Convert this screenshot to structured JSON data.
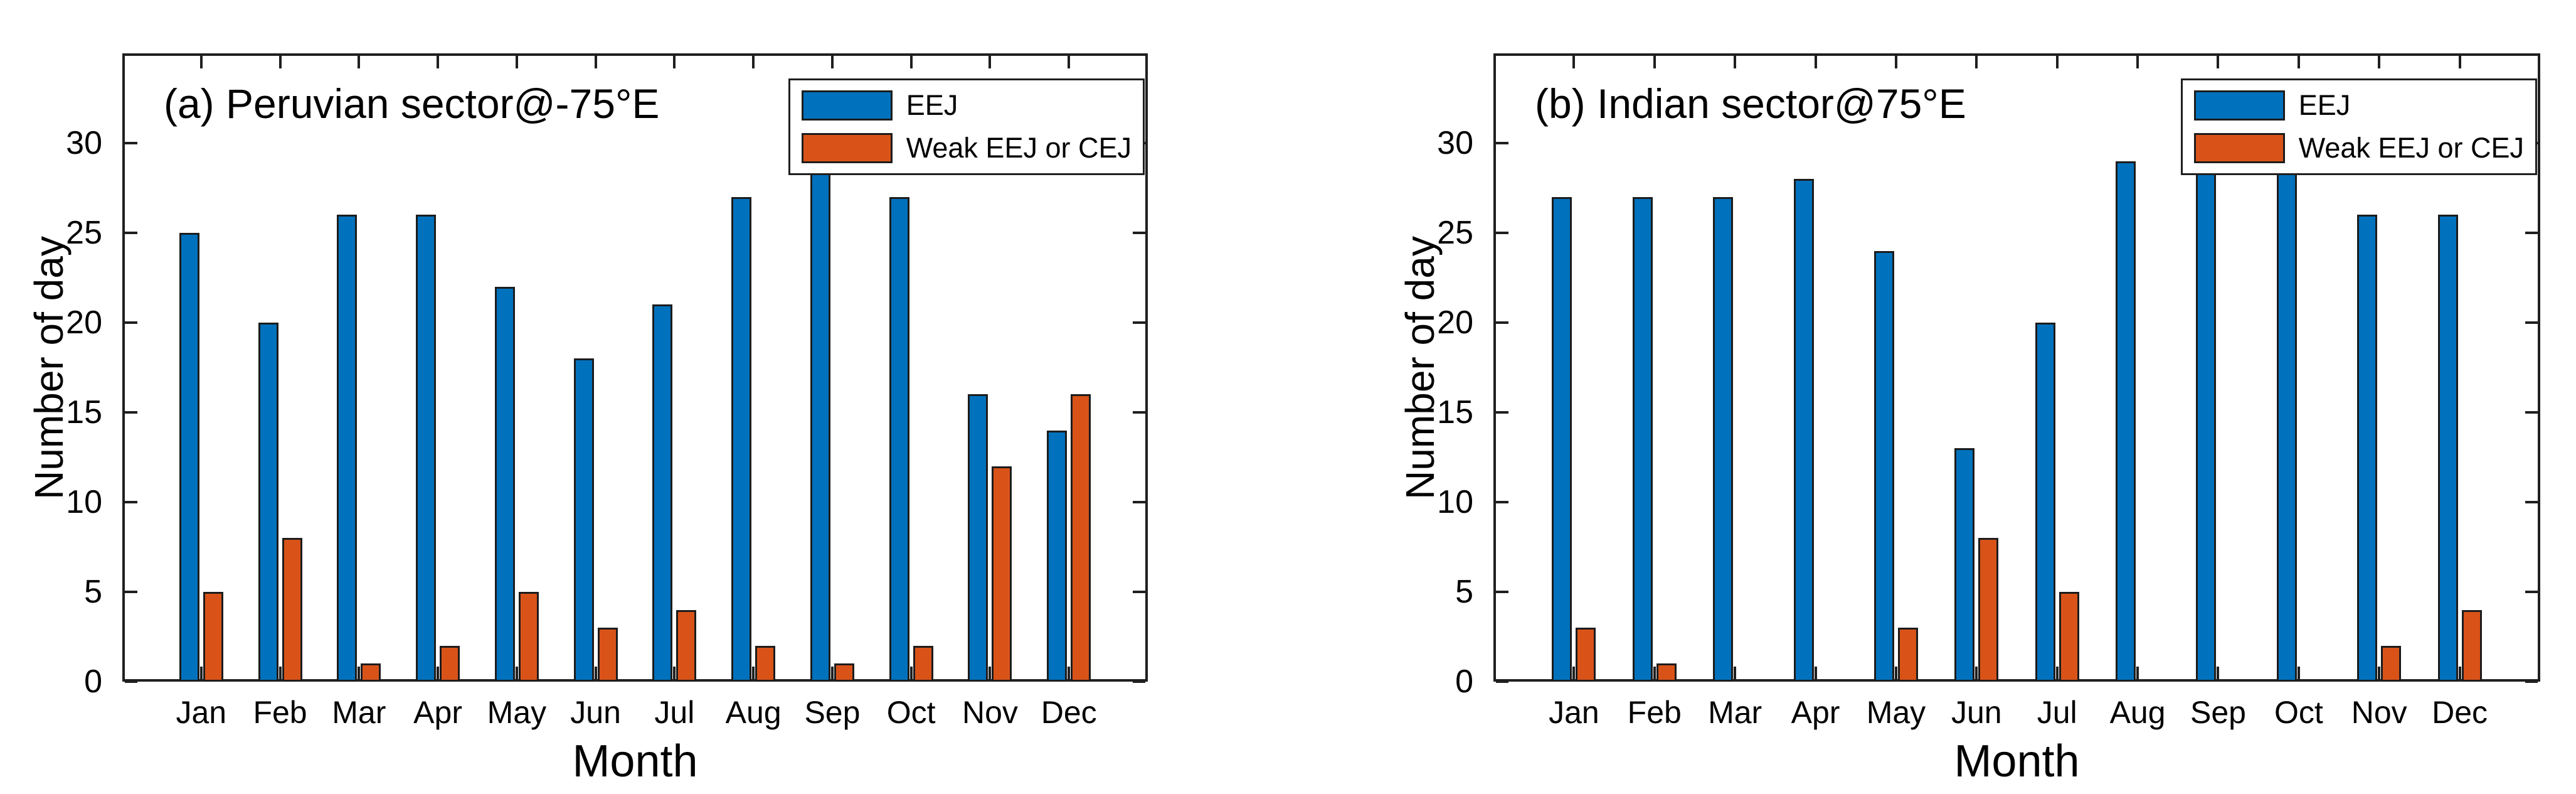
{
  "figure": {
    "background": "#ffffff",
    "axis_color": "#1f1f1f",
    "bar_edge_color": "#1c1c1c",
    "eej_color": "#0072BD",
    "weak_color": "#D95319",
    "legend_entries": [
      "EEJ",
      "Weak EEJ or CEJ"
    ]
  },
  "chart_data": [
    {
      "type": "bar",
      "title": "(a) Peruvian sector@-75°E",
      "xlabel": "Month",
      "ylabel": "Number of day",
      "ylim": [
        0,
        35
      ],
      "yticks": [
        0,
        5,
        10,
        15,
        20,
        25,
        30
      ],
      "grid": false,
      "legend_position": "top-right inside",
      "categories": [
        "Jan",
        "Feb",
        "Mar",
        "Apr",
        "May",
        "Jun",
        "Jul",
        "Aug",
        "Sep",
        "Oct",
        "Nov",
        "Dec"
      ],
      "series": [
        {
          "name": "EEJ",
          "color": "#0072BD",
          "values": [
            25,
            20,
            26,
            26,
            22,
            18,
            21,
            27,
            29,
            27,
            16,
            14
          ]
        },
        {
          "name": "Weak EEJ or CEJ",
          "color": "#D95319",
          "values": [
            5,
            8,
            1,
            2,
            5,
            3,
            4,
            2,
            1,
            2,
            12,
            16
          ]
        }
      ]
    },
    {
      "type": "bar",
      "title": "(b) Indian sector@75°E",
      "xlabel": "Month",
      "ylabel": "Number of day",
      "ylim": [
        0,
        35
      ],
      "yticks": [
        0,
        5,
        10,
        15,
        20,
        25,
        30
      ],
      "grid": false,
      "legend_position": "top-right inside",
      "categories": [
        "Jan",
        "Feb",
        "Mar",
        "Apr",
        "May",
        "Jun",
        "Jul",
        "Aug",
        "Sep",
        "Oct",
        "Nov",
        "Dec"
      ],
      "series": [
        {
          "name": "EEJ",
          "color": "#0072BD",
          "values": [
            27,
            27,
            27,
            28,
            24,
            13,
            20,
            29,
            30,
            29,
            26,
            26
          ]
        },
        {
          "name": "Weak EEJ or CEJ",
          "color": "#D95319",
          "values": [
            3,
            1,
            0,
            0,
            3,
            8,
            5,
            0,
            0,
            0,
            2,
            4
          ]
        }
      ]
    }
  ]
}
